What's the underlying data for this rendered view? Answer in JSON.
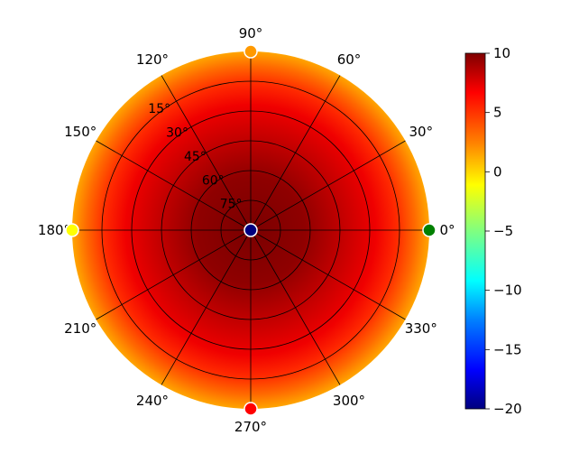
{
  "chart_data": {
    "type": "heatmap",
    "projection": "polar",
    "title": "",
    "angle_tick_labels": [
      "0°",
      "30°",
      "60°",
      "90°",
      "120°",
      "150°",
      "180°",
      "210°",
      "240°",
      "270°",
      "300°",
      "330°"
    ],
    "angle_ticks_deg": [
      0,
      30,
      60,
      90,
      120,
      150,
      180,
      210,
      240,
      270,
      300,
      330
    ],
    "radial_tick_labels": [
      "15°",
      "30°",
      "45°",
      "60°",
      "75°"
    ],
    "radial_ticks_deg": [
      15,
      30,
      45,
      60,
      75
    ],
    "radial_range": [
      0,
      90
    ],
    "radial_direction": "elevation (90° at center)",
    "grid": true,
    "colormap": "jet",
    "colorbar": {
      "range": [
        -20,
        10
      ],
      "tick_values": [
        10,
        5,
        0,
        -5,
        -10,
        -15,
        -20
      ],
      "tick_labels": [
        "10",
        "5",
        "0",
        "−5",
        "−10",
        "−15",
        "−20"
      ],
      "placement": "right"
    },
    "field_samples": [
      {
        "elevation_deg": 90,
        "value": 9.2
      },
      {
        "elevation_deg": 60,
        "value": 8.5
      },
      {
        "elevation_deg": 45,
        "value": 7.5
      },
      {
        "elevation_deg": 30,
        "value": 6.0
      },
      {
        "elevation_deg": 15,
        "value": 4.5
      },
      {
        "elevation_deg": 0,
        "value": 3.0
      }
    ],
    "markers": [
      {
        "azimuth_deg": 0,
        "elevation_deg": 90,
        "value": -20,
        "color": "#00007f"
      },
      {
        "azimuth_deg": 0,
        "elevation_deg": 0,
        "value": -5,
        "color": "#008000"
      },
      {
        "azimuth_deg": 90,
        "elevation_deg": 0,
        "value": 3,
        "color": "#ff9900"
      },
      {
        "azimuth_deg": 180,
        "elevation_deg": 0,
        "value": 1,
        "color": "#ffff00"
      },
      {
        "azimuth_deg": 270,
        "elevation_deg": 0,
        "value": 7,
        "color": "#ff0000"
      }
    ]
  }
}
